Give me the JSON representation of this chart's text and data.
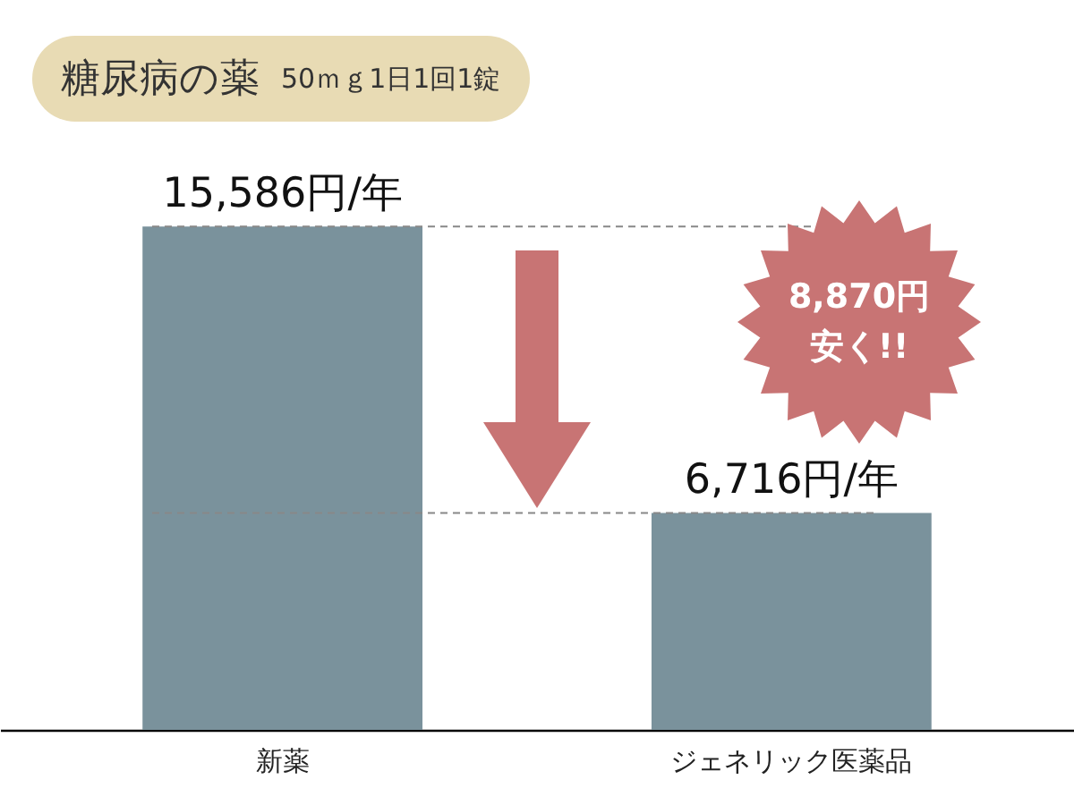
{
  "chart_data": {
    "type": "bar",
    "title": "糖尿病の薬",
    "subtitle": "50ｍｇ1日1回1錠",
    "categories": [
      "新薬",
      "ジェネリック医薬品"
    ],
    "values": [
      15586,
      6716
    ],
    "color": "#7a929c",
    "value_labels": [
      "15,586円/年",
      "6,716円/年"
    ],
    "ref_lines": [
      {
        "axis": "y",
        "value": 15586,
        "line_style": "dashed",
        "color": "#888888"
      },
      {
        "axis": "y",
        "value": 6716,
        "line_style": "dashed",
        "color": "#888888"
      }
    ],
    "annotations": [
      "8,870円安く!!"
    ],
    "grid": false
  }
}
